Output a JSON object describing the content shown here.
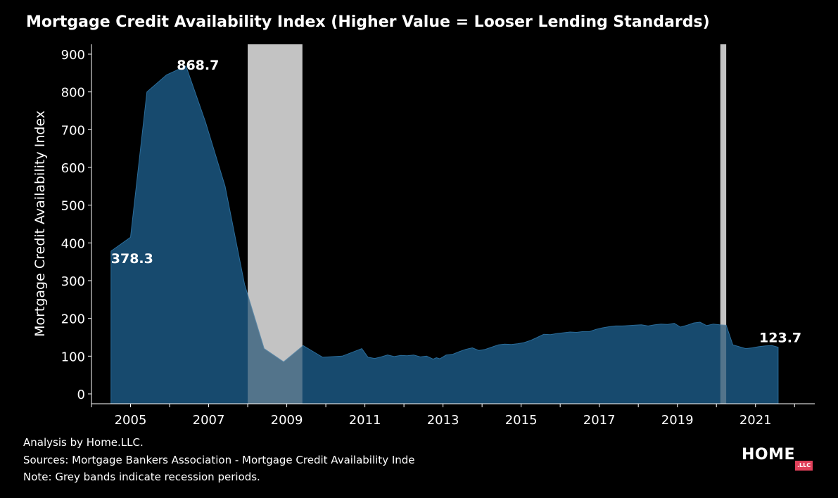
{
  "title": "Mortgage Credit Availability Index (Higher Value = Looser Lending Standards)",
  "footnotes": {
    "analysis": "Analysis by Home.LLC.",
    "sources": "Sources: Mortgage Bankers Association - Mortgage Credit Availability Inde",
    "note": "Note: Grey bands indicate recession periods."
  },
  "logo": {
    "word": "HOME",
    "badge": ".LLC"
  },
  "colors": {
    "area_fill": "#174a6e",
    "area_line": "#2a6c9a",
    "recession_band": "#c4c4c4",
    "background": "#000000"
  },
  "chart_data": {
    "type": "area",
    "ylabel": "Mortgage Credit Availability Index",
    "xlabel": "",
    "ylim": [
      0,
      900
    ],
    "xlim": [
      2004.0,
      2022.5
    ],
    "yticks": [
      "0",
      "100",
      "200",
      "300",
      "400",
      "500",
      "600",
      "700",
      "800",
      "900"
    ],
    "xticks": [
      "2005",
      "2007",
      "2009",
      "2011",
      "2013",
      "2015",
      "2017",
      "2019",
      "2021"
    ],
    "grid": false,
    "recession_bands": [
      [
        2008.0,
        2009.4
      ],
      [
        2020.1,
        2020.25
      ]
    ],
    "annotations": [
      {
        "text": "378.3",
        "x": 2004.5,
        "y": 378.3
      },
      {
        "text": "868.7",
        "x": 2006.4,
        "y": 868.7
      },
      {
        "text": "123.7",
        "x": 2021.6,
        "y": 123.7
      }
    ],
    "series": [
      {
        "x": [
          2004.5,
          2005.0,
          2005.42,
          2005.92,
          2006.42,
          2006.92,
          2007.42,
          2007.92,
          2008.42,
          2008.92,
          2009.42,
          2009.92,
          2010.42,
          2010.92,
          2011.08,
          2011.25,
          2011.42,
          2011.58,
          2011.75,
          2011.92,
          2012.08,
          2012.25,
          2012.42,
          2012.58,
          2012.75,
          2012.83,
          2012.92,
          2013.0,
          2013.08,
          2013.25,
          2013.42,
          2013.58,
          2013.75,
          2013.92,
          2014.08,
          2014.25,
          2014.42,
          2014.58,
          2014.75,
          2014.92,
          2015.08,
          2015.25,
          2015.42,
          2015.58,
          2015.75,
          2015.92,
          2016.08,
          2016.25,
          2016.42,
          2016.58,
          2016.75,
          2016.92,
          2017.08,
          2017.25,
          2017.42,
          2017.58,
          2017.75,
          2017.92,
          2018.08,
          2018.25,
          2018.42,
          2018.58,
          2018.75,
          2018.92,
          2019.08,
          2019.25,
          2019.42,
          2019.58,
          2019.75,
          2019.92,
          2020.08,
          2020.25,
          2020.42,
          2020.58,
          2020.75,
          2020.92,
          2021.08,
          2021.25,
          2021.42,
          2021.58
        ],
        "values": [
          378.3,
          415,
          800,
          845,
          868.7,
          720,
          550,
          290,
          120,
          85,
          128,
          97,
          100,
          120,
          97,
          94,
          98,
          103,
          99,
          102,
          101,
          103,
          98,
          100,
          92,
          96,
          93,
          98,
          103,
          105,
          112,
          118,
          122,
          115,
          118,
          124,
          130,
          132,
          131,
          133,
          136,
          142,
          150,
          158,
          157,
          160,
          162,
          164,
          163,
          165,
          165,
          171,
          175,
          178,
          180,
          180,
          181,
          182,
          183,
          180,
          183,
          185,
          184,
          187,
          177,
          182,
          188,
          190,
          181,
          185,
          183,
          182,
          130,
          125,
          120,
          122,
          125,
          127,
          128,
          123.7
        ]
      }
    ]
  }
}
